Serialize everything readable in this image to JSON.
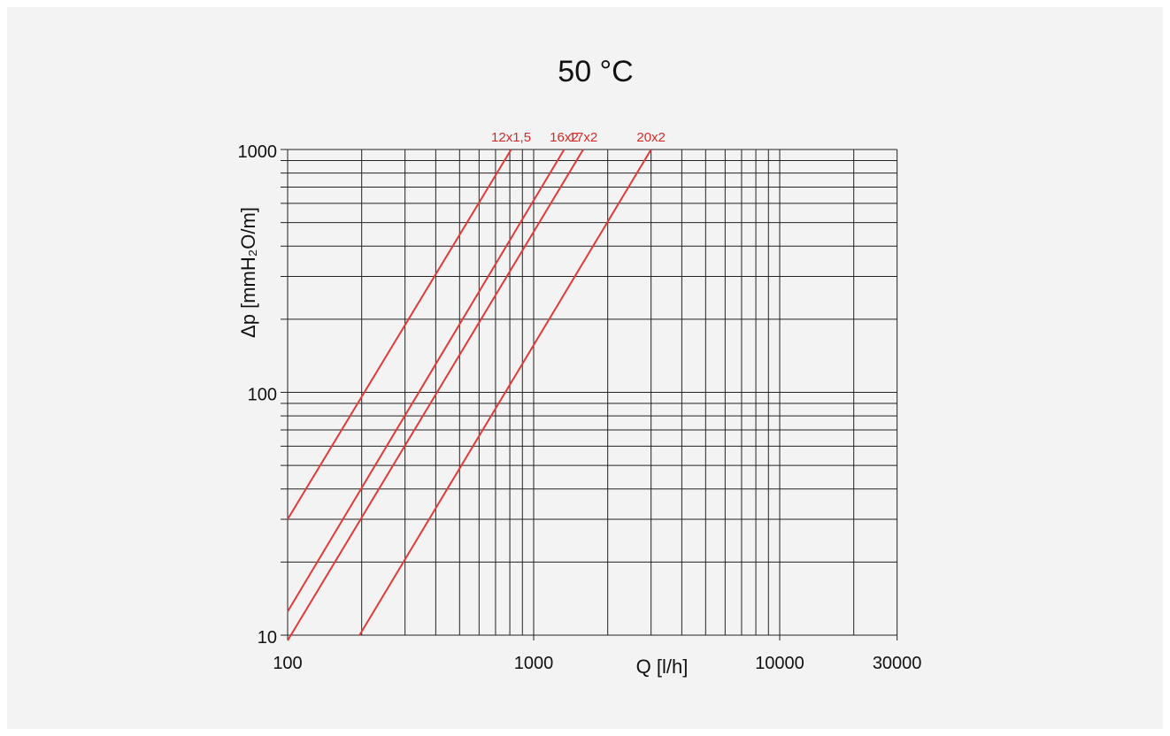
{
  "chart_data": {
    "type": "line",
    "title": "50 °C",
    "xlabel": "Q [l/h]",
    "ylabel": "Δp [mmH₂O/m]",
    "x_scale": "log",
    "y_scale": "log",
    "xlim": [
      100,
      30000
    ],
    "ylim": [
      10,
      1000
    ],
    "x_ticks": [
      100,
      1000,
      10000,
      30000
    ],
    "x_tick_labels": [
      "100",
      "1000",
      "10000",
      "30000"
    ],
    "y_ticks": [
      10,
      100,
      1000
    ],
    "y_tick_labels": [
      "10",
      "100",
      "1000"
    ],
    "grid": true,
    "line_color": "#e03a3a",
    "label_color": "#d42a2a",
    "series": [
      {
        "name": "12x1,5",
        "x": [
          100,
          810
        ],
        "y": [
          30,
          1000
        ]
      },
      {
        "name": "16x2",
        "x": [
          100,
          1330
        ],
        "y": [
          12.5,
          1000
        ]
      },
      {
        "name": "17x2",
        "x": [
          100,
          1590
        ],
        "y": [
          9.5,
          1000
        ]
      },
      {
        "name": "20x2",
        "x": [
          196,
          3000
        ],
        "y": [
          10,
          1000
        ]
      }
    ]
  }
}
